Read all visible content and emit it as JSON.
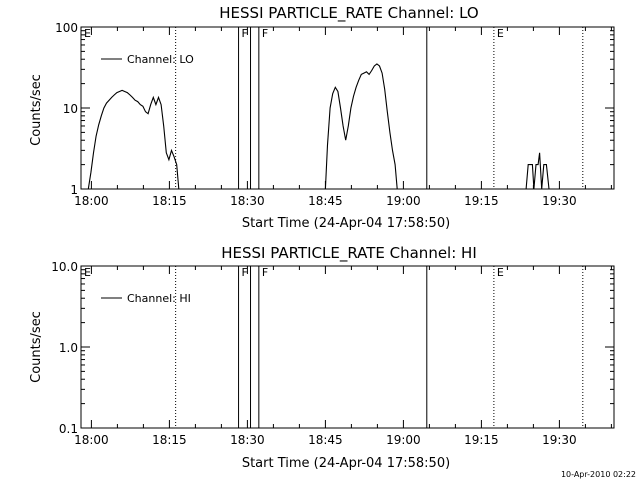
{
  "footer_timestamp": "10-Apr-2010 02:22",
  "chart_data": [
    {
      "type": "line",
      "title": "HESSI PARTICLE_RATE Channel: LO",
      "xlabel": "Start Time (24-Apr-04 17:58:50)",
      "ylabel": "Counts/sec",
      "x_unit": "minutes after 18:00 UT",
      "xlim": [
        -2.0,
        100.5
      ],
      "x_ticks": [
        0,
        15,
        30,
        45,
        60,
        75,
        90
      ],
      "x_tick_labels": [
        "18:00",
        "18:15",
        "18:30",
        "18:45",
        "19:00",
        "19:15",
        "19:30"
      ],
      "y_scale": "log",
      "ylim": [
        1,
        100
      ],
      "y_ticks": [
        1,
        10,
        100
      ],
      "y_tick_labels": [
        "1",
        "10",
        "100"
      ],
      "legend": {
        "label": "Channel: LO",
        "placement": "top-left"
      },
      "markers": [
        {
          "x": -2.0,
          "label": "E",
          "style": "none"
        },
        {
          "x": 16.2,
          "label": "",
          "style": "dotted"
        },
        {
          "x": 28.3,
          "label": "F",
          "style": "solid"
        },
        {
          "x": 30.6,
          "label": "",
          "style": "solid"
        },
        {
          "x": 32.2,
          "label": "F",
          "style": "solid"
        },
        {
          "x": 64.5,
          "label": "",
          "style": "solid"
        },
        {
          "x": 77.4,
          "label": "E",
          "style": "dotted"
        },
        {
          "x": 94.5,
          "label": "",
          "style": "dotted"
        }
      ],
      "series": [
        {
          "name": "Channel: LO",
          "segments": [
            [
              [
                -0.6,
                1.0
              ],
              [
                -0.1,
                1.6
              ],
              [
                0.4,
                2.8
              ],
              [
                0.9,
                4.5
              ],
              [
                1.4,
                6.2
              ],
              [
                1.9,
                8.0
              ],
              [
                2.4,
                10.0
              ],
              [
                2.9,
                11.5
              ],
              [
                3.4,
                12.5
              ],
              [
                3.9,
                13.5
              ],
              [
                4.4,
                14.5
              ],
              [
                4.9,
                15.5
              ],
              [
                5.4,
                16.0
              ],
              [
                5.9,
                16.5
              ],
              [
                6.4,
                16.0
              ],
              [
                6.9,
                15.5
              ],
              [
                7.4,
                14.5
              ],
              [
                7.9,
                13.5
              ],
              [
                8.4,
                12.5
              ],
              [
                8.9,
                12.0
              ],
              [
                9.4,
                11.0
              ],
              [
                9.9,
                10.5
              ],
              [
                10.4,
                9.0
              ],
              [
                10.9,
                8.5
              ],
              [
                11.4,
                11.0
              ],
              [
                11.9,
                13.5
              ],
              [
                12.4,
                11.0
              ],
              [
                12.9,
                13.5
              ],
              [
                13.4,
                11.0
              ],
              [
                13.9,
                6.0
              ],
              [
                14.4,
                2.8
              ],
              [
                14.9,
                2.3
              ],
              [
                15.4,
                3.0
              ],
              [
                15.9,
                2.5
              ],
              [
                16.4,
                2.0
              ],
              [
                16.8,
                1.0
              ]
            ],
            [
              [
                45.0,
                1.0
              ],
              [
                45.4,
                3.5
              ],
              [
                45.9,
                10.0
              ],
              [
                46.4,
                15.0
              ],
              [
                46.9,
                18.0
              ],
              [
                47.4,
                16.0
              ],
              [
                47.9,
                10.0
              ],
              [
                48.4,
                6.0
              ],
              [
                48.9,
                4.0
              ],
              [
                49.4,
                6.0
              ],
              [
                49.9,
                10.0
              ],
              [
                50.4,
                14.0
              ],
              [
                50.9,
                18.0
              ],
              [
                51.4,
                22.0
              ],
              [
                51.9,
                26.0
              ],
              [
                52.4,
                27.0
              ],
              [
                52.9,
                28.0
              ],
              [
                53.4,
                26.0
              ],
              [
                53.9,
                29.0
              ],
              [
                54.4,
                33.0
              ],
              [
                54.9,
                35.0
              ],
              [
                55.4,
                33.0
              ],
              [
                55.9,
                27.0
              ],
              [
                56.4,
                17.0
              ],
              [
                56.9,
                9.0
              ],
              [
                57.4,
                5.0
              ],
              [
                57.9,
                3.0
              ],
              [
                58.4,
                2.0
              ],
              [
                58.8,
                1.0
              ]
            ],
            [
              [
                83.6,
                1.0
              ],
              [
                84.0,
                2.0
              ],
              [
                84.8,
                2.0
              ],
              [
                85.1,
                1.0
              ],
              [
                85.5,
                2.0
              ],
              [
                85.9,
                2.0
              ],
              [
                86.2,
                2.8
              ],
              [
                86.6,
                1.0
              ],
              [
                87.0,
                2.0
              ],
              [
                87.5,
                2.0
              ],
              [
                88.0,
                1.0
              ]
            ]
          ]
        }
      ]
    },
    {
      "type": "line",
      "title": "HESSI PARTICLE_RATE Channel: HI",
      "xlabel": "Start Time (24-Apr-04 17:58:50)",
      "ylabel": "Counts/sec",
      "x_unit": "minutes after 18:00 UT",
      "xlim": [
        -2.0,
        100.5
      ],
      "x_ticks": [
        0,
        15,
        30,
        45,
        60,
        75,
        90
      ],
      "x_tick_labels": [
        "18:00",
        "18:15",
        "18:30",
        "18:45",
        "19:00",
        "19:15",
        "19:30"
      ],
      "y_scale": "log",
      "ylim": [
        0.1,
        10
      ],
      "y_ticks": [
        0.1,
        1,
        10
      ],
      "y_tick_labels": [
        "0.1",
        "1.0",
        "10.0"
      ],
      "legend": {
        "label": "Channel: HI",
        "placement": "top-left"
      },
      "markers": [
        {
          "x": -2.0,
          "label": "E",
          "style": "none"
        },
        {
          "x": 16.2,
          "label": "",
          "style": "dotted"
        },
        {
          "x": 28.3,
          "label": "F",
          "style": "solid"
        },
        {
          "x": 30.6,
          "label": "",
          "style": "solid"
        },
        {
          "x": 32.2,
          "label": "F",
          "style": "solid"
        },
        {
          "x": 64.5,
          "label": "",
          "style": "solid"
        },
        {
          "x": 77.4,
          "label": "E",
          "style": "dotted"
        },
        {
          "x": 94.5,
          "label": "",
          "style": "dotted"
        }
      ],
      "series": [
        {
          "name": "Channel: HI",
          "segments": []
        }
      ]
    }
  ]
}
